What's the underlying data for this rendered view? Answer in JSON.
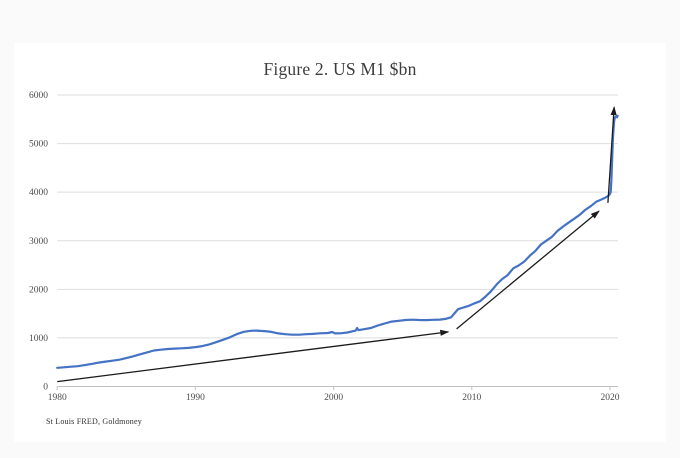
{
  "page": {
    "background_color": "#fafafa",
    "card_color": "#ffffff"
  },
  "chart_data": {
    "type": "line",
    "title": "Figure 2. US M1 $bn",
    "source": "St Louis FRED, Goldmoney",
    "xlabel": "",
    "ylabel": "",
    "xlim": [
      1980,
      2020.8
    ],
    "ylim": [
      0,
      6000
    ],
    "xticks": [
      1980,
      1990,
      2000,
      2010,
      2020
    ],
    "yticks": [
      0,
      1000,
      2000,
      3000,
      4000,
      5000,
      6000
    ],
    "grid": true,
    "legend": false,
    "line_color": "#4472c4",
    "arrow_color": "#1b1b1b",
    "grid_color": "#dedede",
    "axis_color": "#c2c2c2",
    "tick_label_color": "#4d4d4d",
    "series": [
      {
        "name": "US M1 $bn",
        "points": [
          [
            1980.0,
            385
          ],
          [
            1980.5,
            395
          ],
          [
            1981.0,
            408
          ],
          [
            1981.5,
            418
          ],
          [
            1982.0,
            440
          ],
          [
            1982.5,
            465
          ],
          [
            1983.0,
            492
          ],
          [
            1983.5,
            512
          ],
          [
            1984.0,
            532
          ],
          [
            1984.5,
            552
          ],
          [
            1985.0,
            585
          ],
          [
            1985.5,
            622
          ],
          [
            1986.0,
            662
          ],
          [
            1986.5,
            702
          ],
          [
            1987.0,
            742
          ],
          [
            1987.5,
            757
          ],
          [
            1988.0,
            772
          ],
          [
            1988.5,
            780
          ],
          [
            1989.0,
            786
          ],
          [
            1989.5,
            795
          ],
          [
            1990.0,
            812
          ],
          [
            1990.5,
            832
          ],
          [
            1991.0,
            866
          ],
          [
            1991.5,
            912
          ],
          [
            1992.0,
            962
          ],
          [
            1992.5,
            1012
          ],
          [
            1993.0,
            1078
          ],
          [
            1993.5,
            1125
          ],
          [
            1994.0,
            1146
          ],
          [
            1994.4,
            1150
          ],
          [
            1995.0,
            1140
          ],
          [
            1995.5,
            1124
          ],
          [
            1996.0,
            1092
          ],
          [
            1996.5,
            1076
          ],
          [
            1997.0,
            1066
          ],
          [
            1997.5,
            1066
          ],
          [
            1998.0,
            1076
          ],
          [
            1998.5,
            1082
          ],
          [
            1999.0,
            1094
          ],
          [
            1999.6,
            1102
          ],
          [
            1999.9,
            1122
          ],
          [
            2000.1,
            1092
          ],
          [
            2000.5,
            1096
          ],
          [
            2001.0,
            1112
          ],
          [
            2001.6,
            1150
          ],
          [
            2001.7,
            1205
          ],
          [
            2001.8,
            1158
          ],
          [
            2002.2,
            1180
          ],
          [
            2002.7,
            1205
          ],
          [
            2003.2,
            1256
          ],
          [
            2003.7,
            1296
          ],
          [
            2004.2,
            1335
          ],
          [
            2004.7,
            1352
          ],
          [
            2005.2,
            1368
          ],
          [
            2005.7,
            1374
          ],
          [
            2006.2,
            1368
          ],
          [
            2006.7,
            1366
          ],
          [
            2007.2,
            1372
          ],
          [
            2007.7,
            1378
          ],
          [
            2008.1,
            1392
          ],
          [
            2008.5,
            1424
          ],
          [
            2008.8,
            1524
          ],
          [
            2009.0,
            1592
          ],
          [
            2009.4,
            1626
          ],
          [
            2009.8,
            1662
          ],
          [
            2010.2,
            1712
          ],
          [
            2010.6,
            1756
          ],
          [
            2011.0,
            1852
          ],
          [
            2011.4,
            1962
          ],
          [
            2011.8,
            2102
          ],
          [
            2012.2,
            2212
          ],
          [
            2012.6,
            2292
          ],
          [
            2013.0,
            2432
          ],
          [
            2013.4,
            2492
          ],
          [
            2013.8,
            2572
          ],
          [
            2014.2,
            2692
          ],
          [
            2014.6,
            2792
          ],
          [
            2015.0,
            2922
          ],
          [
            2015.4,
            3002
          ],
          [
            2015.8,
            3082
          ],
          [
            2016.2,
            3202
          ],
          [
            2016.6,
            3292
          ],
          [
            2017.0,
            3372
          ],
          [
            2017.4,
            3452
          ],
          [
            2017.8,
            3532
          ],
          [
            2018.2,
            3632
          ],
          [
            2018.6,
            3712
          ],
          [
            2019.0,
            3802
          ],
          [
            2019.4,
            3852
          ],
          [
            2019.7,
            3892
          ],
          [
            2019.95,
            3942
          ],
          [
            2020.05,
            4002
          ],
          [
            2020.1,
            4252
          ],
          [
            2020.15,
            4652
          ],
          [
            2020.2,
            5052
          ],
          [
            2020.25,
            5302
          ],
          [
            2020.3,
            5452
          ],
          [
            2020.35,
            5532
          ],
          [
            2020.45,
            5562
          ],
          [
            2020.5,
            5542
          ],
          [
            2020.55,
            5572
          ]
        ]
      }
    ],
    "annotations": {
      "arrows": [
        {
          "name": "trend-arrow-1980-2008",
          "from": [
            1980.0,
            100
          ],
          "to": [
            2008.3,
            1125
          ]
        },
        {
          "name": "trend-arrow-2009-2019",
          "from": [
            2008.9,
            1185
          ],
          "to": [
            2019.2,
            3610
          ]
        },
        {
          "name": "trend-arrow-2020-spike",
          "from": [
            2019.85,
            3780
          ],
          "to": [
            2020.3,
            5750
          ]
        }
      ]
    }
  }
}
